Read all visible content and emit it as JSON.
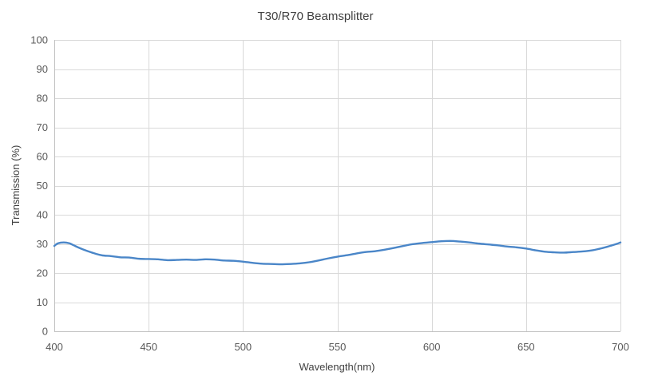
{
  "chart_data": {
    "type": "line",
    "title": "T30/R70 Beamsplitter",
    "xlabel": "Wavelength(nm)",
    "ylabel": "Transmission (%)",
    "xlim": [
      400,
      700
    ],
    "ylim": [
      0,
      100
    ],
    "x_ticks": [
      400,
      450,
      500,
      550,
      600,
      650,
      700
    ],
    "y_ticks": [
      0,
      10,
      20,
      30,
      40,
      50,
      60,
      70,
      80,
      90,
      100
    ],
    "grid": true,
    "legend": "none",
    "series_color": "#4a86c8",
    "series": [
      {
        "x": [
          400,
          402,
          405,
          408,
          410,
          413,
          416,
          420,
          425,
          430,
          435,
          440,
          445,
          450,
          455,
          460,
          465,
          470,
          475,
          480,
          485,
          490,
          495,
          500,
          505,
          510,
          515,
          520,
          525,
          530,
          535,
          540,
          545,
          550,
          555,
          560,
          565,
          570,
          575,
          580,
          585,
          590,
          595,
          600,
          605,
          610,
          615,
          620,
          625,
          630,
          635,
          640,
          645,
          650,
          655,
          660,
          665,
          670,
          675,
          680,
          685,
          690,
          695,
          698,
          700
        ],
        "y": [
          29.3,
          30.2,
          30.5,
          30.2,
          29.6,
          28.7,
          27.9,
          27.0,
          26.1,
          25.8,
          25.4,
          25.3,
          24.9,
          24.8,
          24.7,
          24.4,
          24.5,
          24.6,
          24.5,
          24.7,
          24.6,
          24.3,
          24.2,
          23.9,
          23.5,
          23.2,
          23.1,
          23.0,
          23.1,
          23.3,
          23.7,
          24.3,
          25.0,
          25.6,
          26.1,
          26.7,
          27.2,
          27.5,
          28.0,
          28.6,
          29.3,
          29.9,
          30.3,
          30.6,
          30.9,
          31.0,
          30.8,
          30.5,
          30.1,
          29.8,
          29.5,
          29.1,
          28.8,
          28.4,
          27.8,
          27.3,
          27.1,
          27.0,
          27.2,
          27.4,
          27.8,
          28.5,
          29.4,
          30.0,
          30.5
        ]
      }
    ]
  }
}
